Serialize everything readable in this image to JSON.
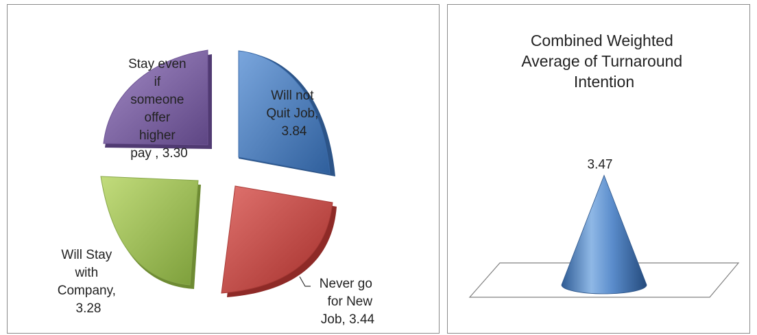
{
  "chart_data": [
    {
      "type": "pie",
      "title": "",
      "slices": [
        {
          "label_lines": [
            "Will not",
            "Quit Job,",
            "3.84"
          ],
          "value": 3.84,
          "color": "#4f81bd"
        },
        {
          "label_lines": [
            "Never go",
            "for New",
            "Job, 3.44"
          ],
          "value": 3.44,
          "color": "#c0504d"
        },
        {
          "label_lines": [
            "Will Stay",
            "with",
            "Company,",
            "3.28"
          ],
          "value": 3.28,
          "color": "#9bbb59"
        },
        {
          "label_lines": [
            "Stay even",
            "if",
            "someone",
            "offer",
            "higher",
            "pay , 3.30"
          ],
          "value": 3.3,
          "color": "#8064a2"
        }
      ]
    },
    {
      "type": "bar",
      "shape": "cone",
      "title_lines": [
        "Combined Weighted",
        "Average of Turnaround",
        "Intention"
      ],
      "categories": [
        ""
      ],
      "values": [
        3.47
      ],
      "value_label": "3.47",
      "color": "#4f81bd"
    }
  ]
}
